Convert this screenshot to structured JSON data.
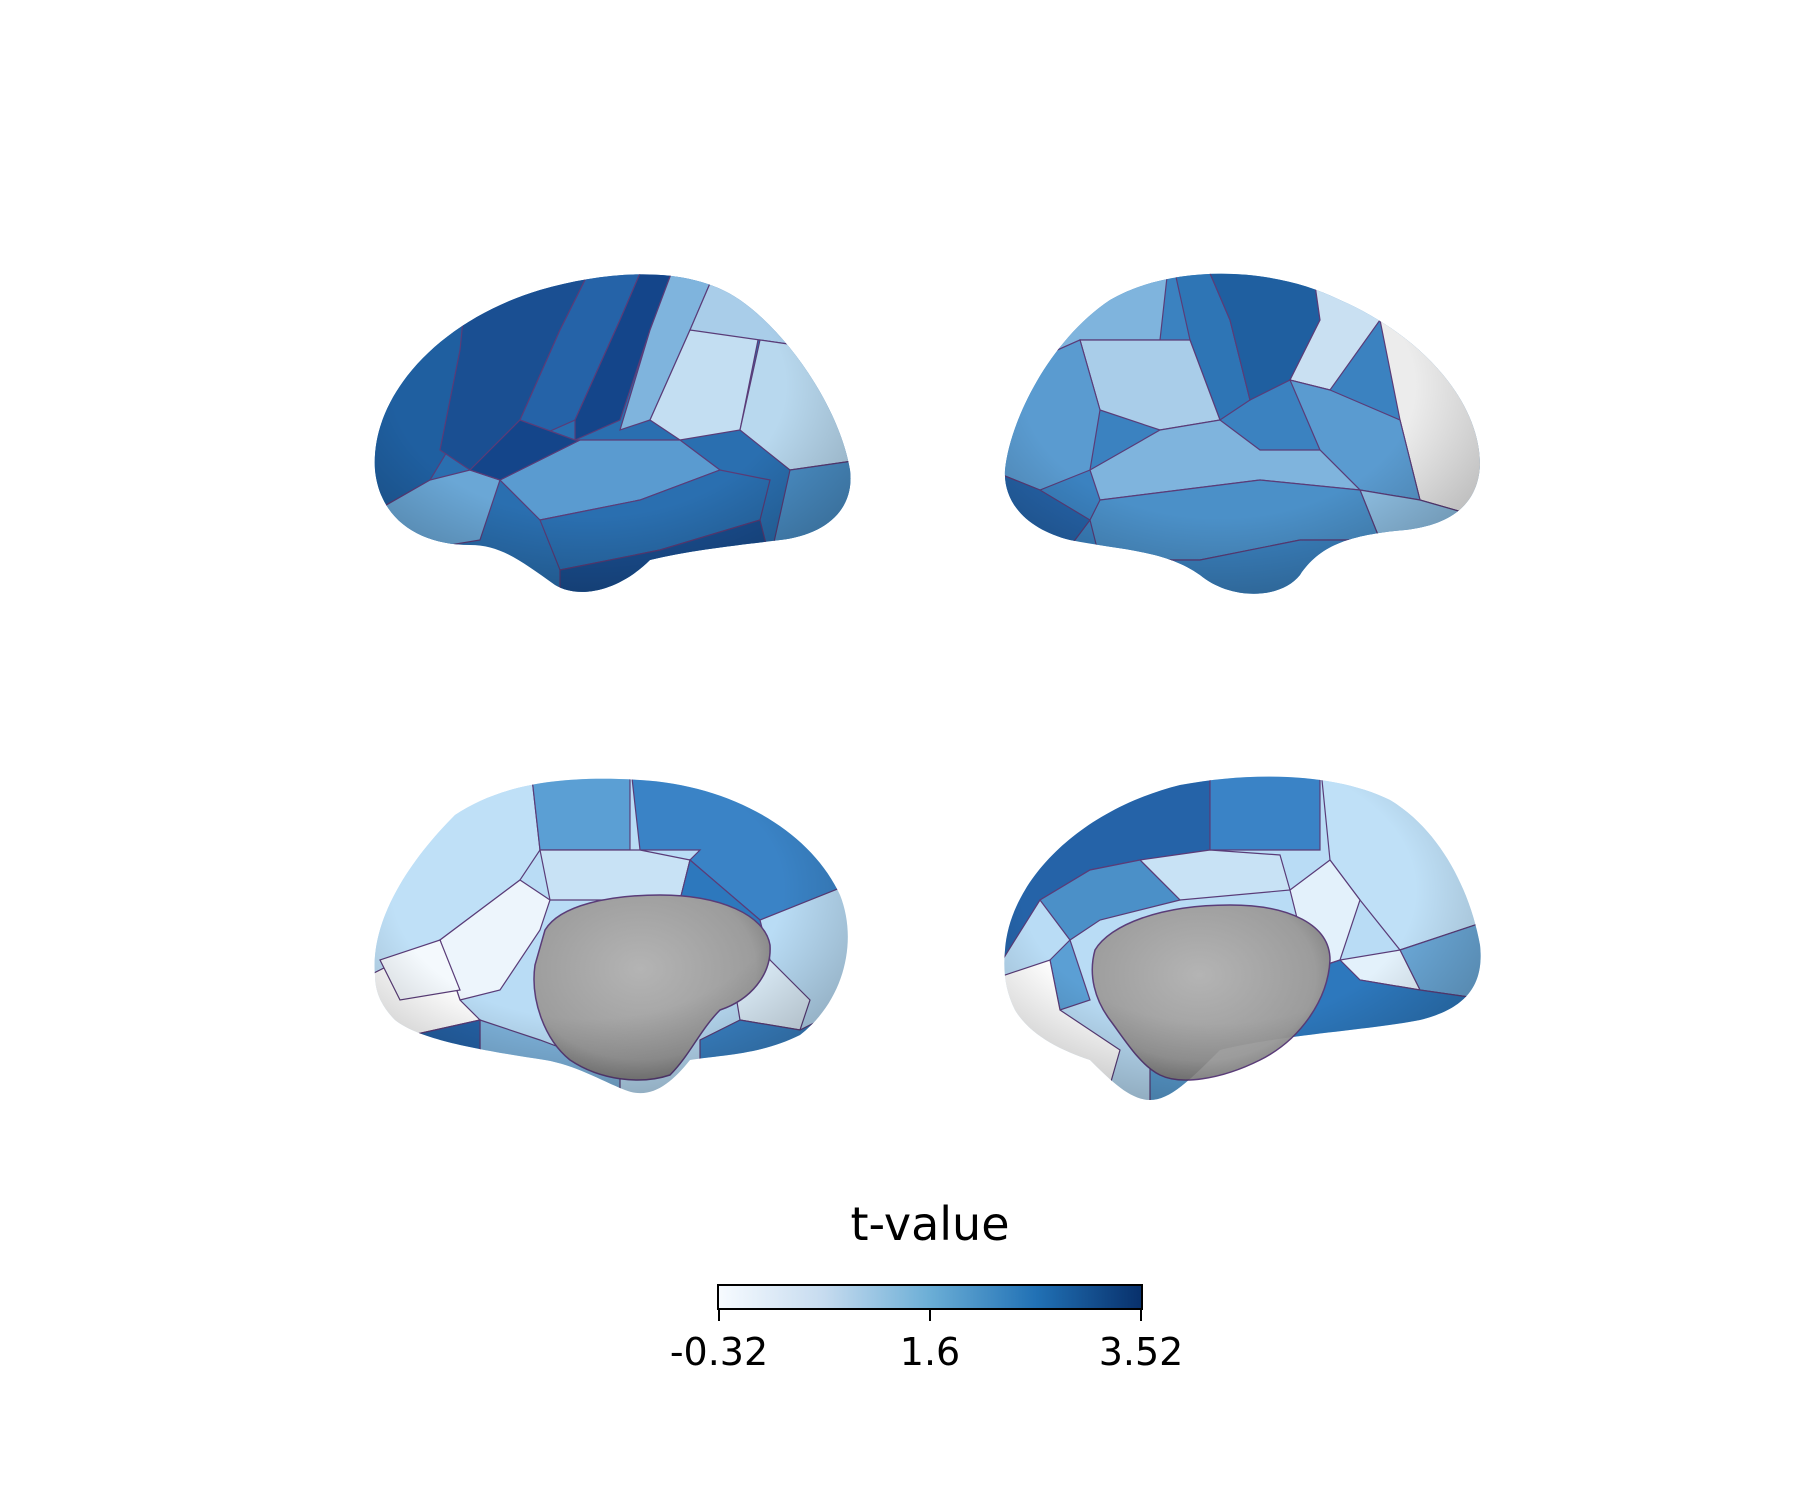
{
  "colorbar": {
    "title": "t-value",
    "min_label": "-0.32",
    "mid_label": "1.6",
    "max_label": "3.52",
    "min": -0.32,
    "max": 3.52,
    "colormap": "Blues",
    "colors": [
      "#f7fbff",
      "#c6dbef",
      "#6baed6",
      "#2171b5",
      "#08306b"
    ]
  },
  "views": [
    "left-lateral",
    "right-lateral",
    "left-medial",
    "right-medial"
  ],
  "medial_wall_color": "#a8a8a8",
  "parcel_border_color": "#5a3c78"
}
